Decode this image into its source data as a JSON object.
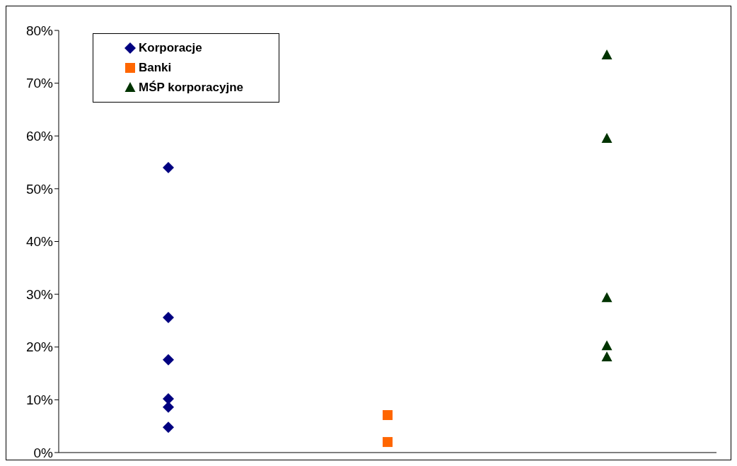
{
  "chart_data": {
    "type": "scatter",
    "categories": [
      null,
      null,
      null
    ],
    "ylim": [
      0,
      80
    ],
    "yticks": [
      {
        "value": 0,
        "label": "0%"
      },
      {
        "value": 10,
        "label": "10%"
      },
      {
        "value": 20,
        "label": "20%"
      },
      {
        "value": 30,
        "label": "30%"
      },
      {
        "value": 40,
        "label": "40%"
      },
      {
        "value": 50,
        "label": "50%"
      },
      {
        "value": 60,
        "label": "60%"
      },
      {
        "value": 70,
        "label": "70%"
      },
      {
        "value": 80,
        "label": "80%"
      }
    ],
    "tick_labels": "y",
    "legend": "top left",
    "series": [
      {
        "name": "Korporacje",
        "color": "#000080",
        "marker": "diamond",
        "values": [
          54.0,
          null,
          null
        ]
      },
      {
        "color": "#000080",
        "marker": "diamond",
        "values": [
          25.6,
          null,
          null
        ]
      },
      {
        "color": "#000080",
        "marker": "diamond",
        "values": [
          17.6,
          null,
          null
        ]
      },
      {
        "color": "#000080",
        "marker": "diamond",
        "values": [
          10.2,
          null,
          null
        ]
      },
      {
        "color": "#000080",
        "marker": "diamond",
        "values": [
          8.6,
          null,
          null
        ]
      },
      {
        "color": "#000080",
        "marker": "diamond",
        "values": [
          4.8,
          null,
          null
        ]
      },
      {
        "name": "Banki",
        "color": "#ff6600",
        "marker": "square",
        "values": [
          null,
          7.1,
          null
        ]
      },
      {
        "color": "#ff6600",
        "marker": "square",
        "values": [
          null,
          2.0,
          null
        ]
      },
      {
        "name": "MŚP korporacyjne",
        "color": "#003300",
        "marker": "triangle",
        "values": [
          null,
          null,
          75.3
        ]
      },
      {
        "color": "#003300",
        "marker": "triangle",
        "values": [
          null,
          null,
          59.5
        ]
      },
      {
        "color": "#003300",
        "marker": "triangle",
        "values": [
          null,
          null,
          29.3
        ]
      },
      {
        "color": "#003300",
        "marker": "triangle",
        "values": [
          null,
          null,
          20.2
        ]
      },
      {
        "color": "#003300",
        "marker": "triangle",
        "values": [
          null,
          null,
          18.1
        ]
      }
    ]
  }
}
